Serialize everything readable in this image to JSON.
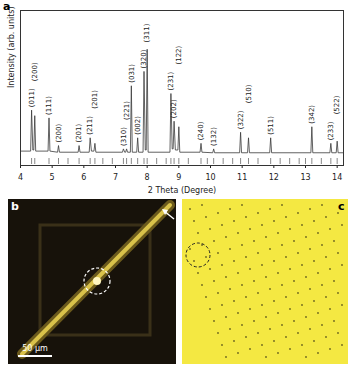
{
  "chart_data": {
    "type": "line",
    "xlabel": "2 Theta (Degree)",
    "ylabel": "Intensity (arb. units)",
    "xlim": [
      4,
      14.2
    ],
    "xticks": [
      4,
      5,
      6,
      7,
      8,
      9,
      10,
      11,
      12,
      13,
      14
    ],
    "ylim": [
      -10,
      130
    ],
    "yticks": [],
    "tick_labels": "x",
    "grid": false,
    "color": "#3a3a3a",
    "x": [
      4.0,
      4.32,
      4.35,
      4.39,
      4.42,
      4.45,
      4.48,
      4.87,
      4.9,
      4.93,
      5.17,
      5.2,
      5.23,
      5.82,
      5.85,
      5.88,
      6.17,
      6.2,
      6.24,
      6.32,
      6.35,
      6.38,
      7.22,
      7.25,
      7.29,
      7.32,
      7.35,
      7.38,
      7.47,
      7.5,
      7.53,
      7.67,
      7.7,
      7.73,
      7.87,
      7.9,
      7.94,
      7.97,
      8.0,
      8.03,
      8.72,
      8.75,
      8.79,
      8.82,
      8.85,
      8.89,
      8.97,
      9.0,
      9.03,
      9.67,
      9.7,
      9.73,
      10.07,
      10.1,
      10.13,
      10.92,
      10.95,
      10.98,
      11.17,
      11.2,
      11.23,
      11.87,
      11.9,
      11.93,
      13.17,
      13.2,
      13.23,
      13.77,
      13.8,
      13.83,
      13.97,
      14.0,
      14.03,
      14.2
    ],
    "values": [
      3,
      3,
      40,
      4,
      4,
      35,
      3,
      3,
      33,
      3,
      2,
      8,
      2,
      2,
      8,
      2,
      2,
      15,
      3,
      3,
      10,
      2,
      2,
      5,
      2,
      2,
      5,
      2,
      2,
      62,
      2,
      2,
      15,
      2,
      2,
      75,
      4,
      4,
      95,
      2,
      2,
      55,
      5,
      5,
      30,
      4,
      4,
      25,
      2,
      2,
      10,
      2,
      1.5,
      5,
      1.5,
      1.5,
      20,
      1.5,
      1.5,
      15,
      1.5,
      1.5,
      15,
      1.5,
      1.5,
      25,
      1.5,
      1.5,
      10,
      1.5,
      1.5,
      12,
      1.5,
      1.5
    ],
    "peak_labels": [
      {
        "x": 4.35,
        "y": 40,
        "label": "(011)"
      },
      {
        "x": 4.45,
        "y": 35,
        "label": "(200)"
      },
      {
        "x": 4.9,
        "y": 33,
        "label": "(111)"
      },
      {
        "x": 5.2,
        "y": 8,
        "label": "(200)"
      },
      {
        "x": 5.85,
        "y": 8,
        "label": "(201)"
      },
      {
        "x": 6.2,
        "y": 15,
        "label": "(211)"
      },
      {
        "x": 6.35,
        "y": 10,
        "label": "(201)"
      },
      {
        "x": 7.25,
        "y": 5,
        "label": "(310)"
      },
      {
        "x": 7.35,
        "y": 5,
        "label": "(221)"
      },
      {
        "x": 7.5,
        "y": 62,
        "label": "(031)"
      },
      {
        "x": 7.7,
        "y": 15,
        "label": "(002)"
      },
      {
        "x": 7.9,
        "y": 75,
        "label": "(320)"
      },
      {
        "x": 8.0,
        "y": 95,
        "label": "(311)"
      },
      {
        "x": 8.75,
        "y": 55,
        "label": "(231)"
      },
      {
        "x": 8.85,
        "y": 30,
        "label": "(202)"
      },
      {
        "x": 9.0,
        "y": 25,
        "label": "(122)"
      },
      {
        "x": 9.7,
        "y": 10,
        "label": "(240)"
      },
      {
        "x": 10.1,
        "y": 5,
        "label": "(132)"
      },
      {
        "x": 10.95,
        "y": 20,
        "label": "(322)"
      },
      {
        "x": 11.2,
        "y": 15,
        "label": "(510)"
      },
      {
        "x": 11.9,
        "y": 15,
        "label": "(511)"
      },
      {
        "x": 13.2,
        "y": 25,
        "label": "(342)"
      },
      {
        "x": 13.8,
        "y": 10,
        "label": "(233)"
      },
      {
        "x": 14.0,
        "y": 12,
        "label": "(522)"
      }
    ],
    "reference_peaks": [
      4.35,
      4.45,
      4.9,
      5.2,
      5.5,
      5.85,
      6.2,
      6.35,
      6.6,
      6.9,
      7.25,
      7.35,
      7.5,
      7.7,
      7.9,
      8.0,
      8.3,
      8.6,
      8.75,
      8.85,
      9.0,
      9.3,
      9.7,
      9.9,
      10.1,
      10.4,
      10.7,
      10.95,
      11.2,
      11.5,
      11.9,
      12.2,
      12.5,
      12.8,
      13.0,
      13.2,
      13.5,
      13.8,
      14.0
    ]
  },
  "panel_labels": [
    "a",
    "b",
    "c"
  ],
  "scale_bar": "50 μm"
}
